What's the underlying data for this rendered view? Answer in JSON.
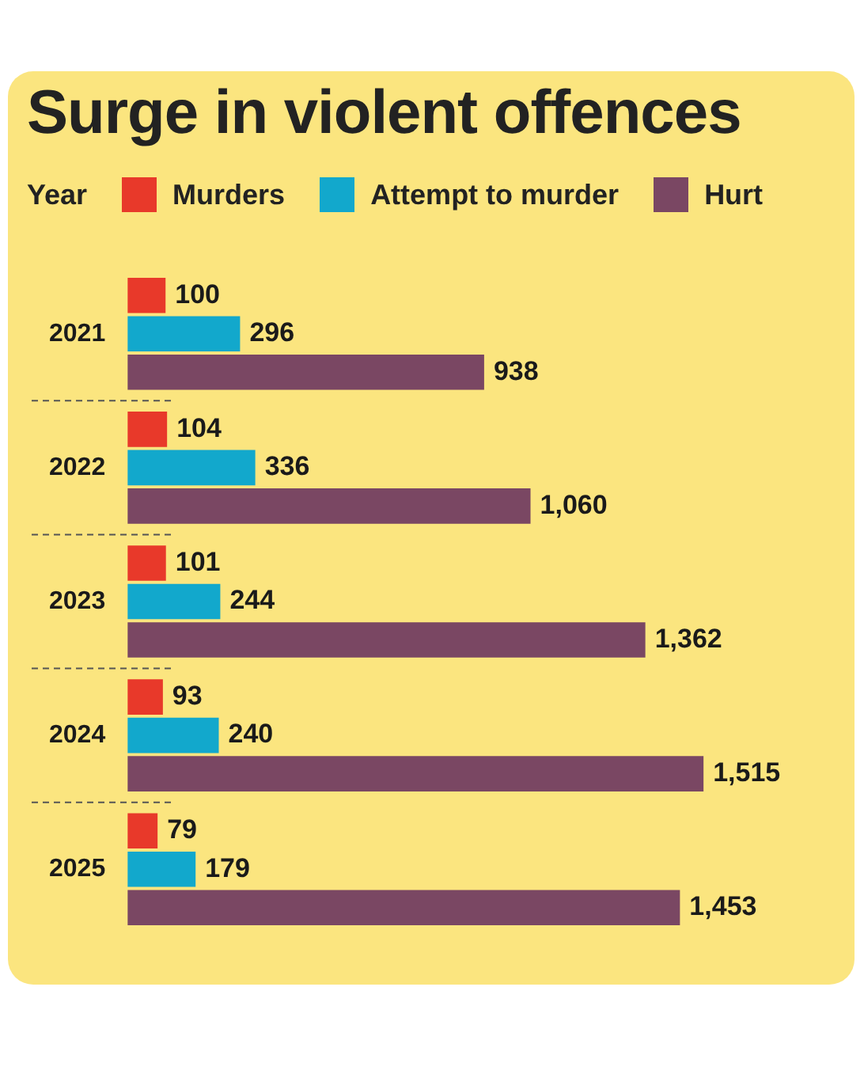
{
  "chart_data": {
    "type": "bar",
    "orientation": "horizontal",
    "title": "Surge in violent offences",
    "ylabel": "Year",
    "categories": [
      "2021",
      "2022",
      "2023",
      "2024",
      "2025"
    ],
    "series": [
      {
        "name": "Murders",
        "color": "#e8392a",
        "values": [
          100,
          104,
          101,
          93,
          79
        ],
        "value_labels": [
          "100",
          "104",
          "101",
          "93",
          "79"
        ]
      },
      {
        "name": "Attempt to murder",
        "color": "#12a8cc",
        "values": [
          296,
          336,
          244,
          240,
          179
        ],
        "value_labels": [
          "296",
          "336",
          "244",
          "240",
          "179"
        ]
      },
      {
        "name": "Hurt",
        "color": "#7a4763",
        "values": [
          938,
          1060,
          1362,
          1515,
          1453
        ],
        "value_labels": [
          "938",
          "1,060",
          "1,362",
          "1,515",
          "1,453"
        ]
      }
    ],
    "tick_labels": "y",
    "legend": "top left"
  }
}
